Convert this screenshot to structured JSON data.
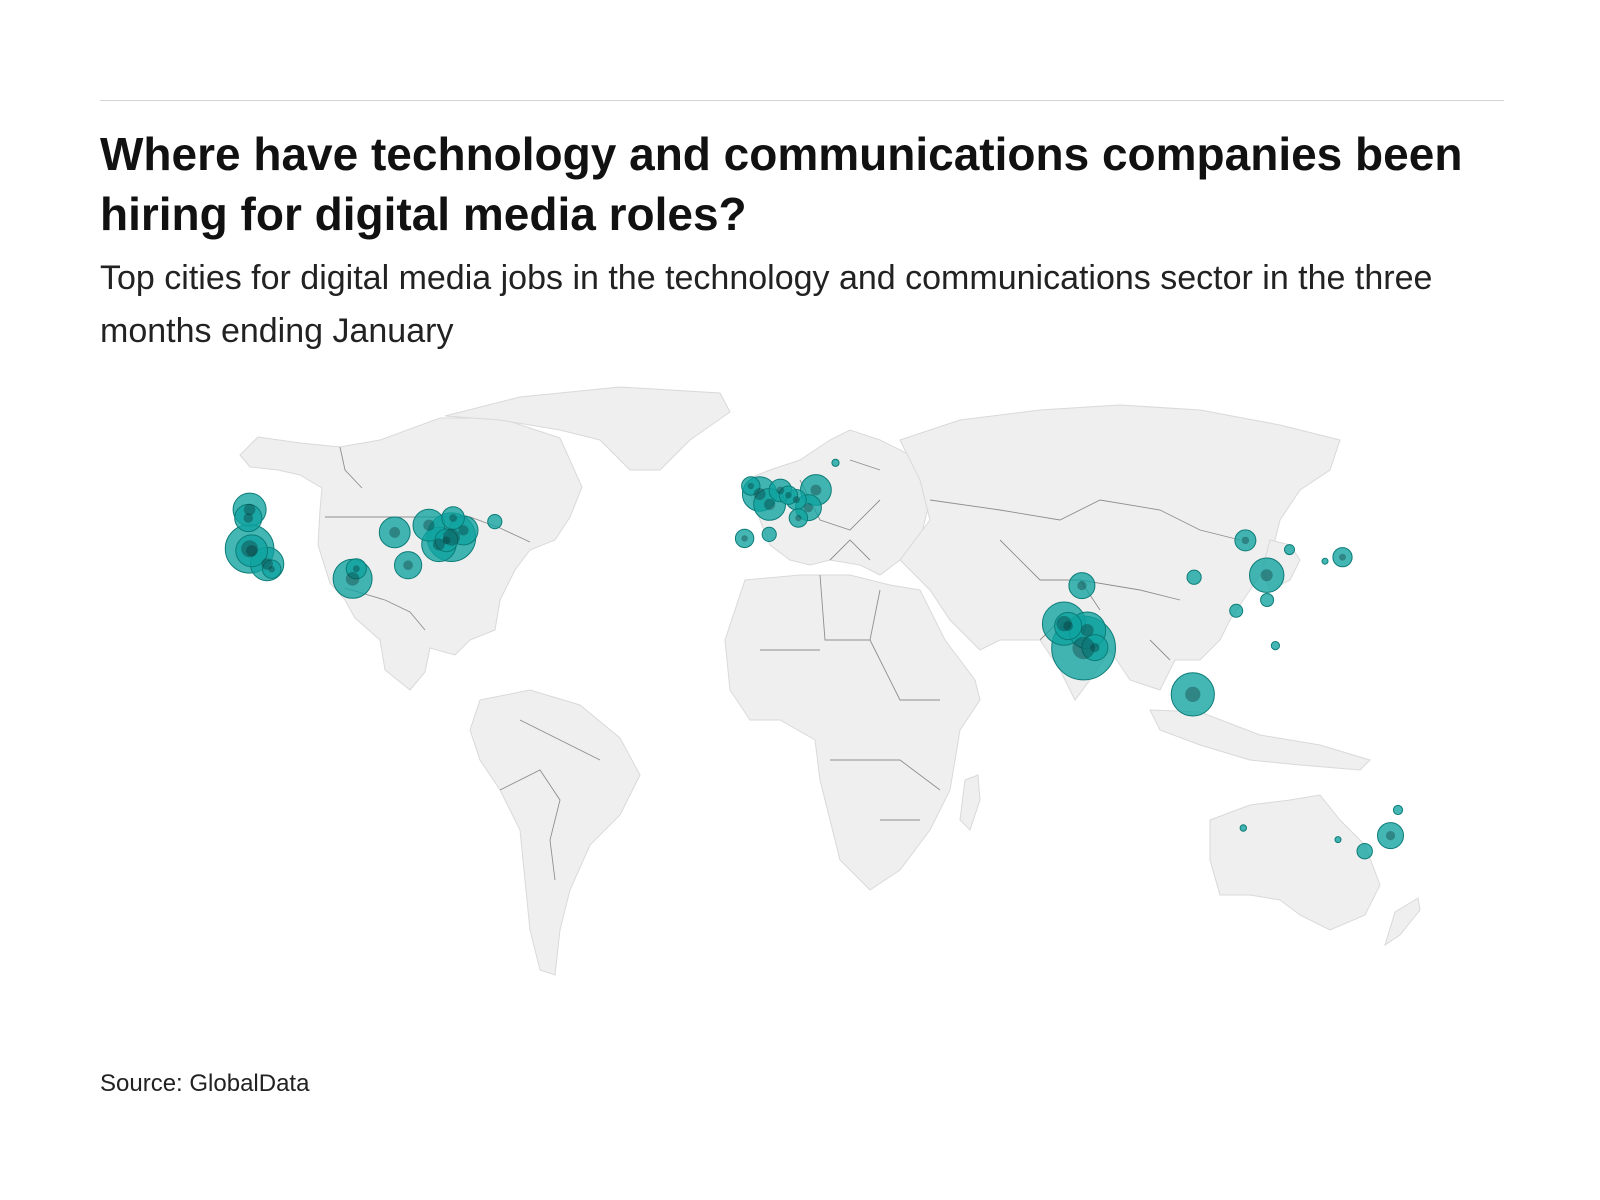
{
  "header": {
    "title": "Where have technology and communications companies been hiring for digital media roles?",
    "subtitle": "Top cities for digital media jobs in the technology and communications sector in the three months ending January"
  },
  "footer": {
    "source": "Source: GlobalData"
  },
  "map": {
    "projection": "equirectangular",
    "land_color": "#efefef",
    "bubble_color": "#0fa3a0",
    "bubble_opacity": 0.78,
    "overlap_color": "#0a2b2b"
  },
  "chart_data": {
    "type": "bubble-map",
    "title": "Where have technology and communications companies been hiring for digital media roles?",
    "unit": "relative job postings (area-scaled)",
    "points": [
      {
        "lon": -122.4,
        "lat": 47.6,
        "value": 3.2
      },
      {
        "lon": -122.7,
        "lat": 45.5,
        "value": 2.2
      },
      {
        "lon": -122.4,
        "lat": 37.8,
        "value": 7.0
      },
      {
        "lon": -121.9,
        "lat": 37.3,
        "value": 3.0
      },
      {
        "lon": -118.2,
        "lat": 34.0,
        "value": 3.3
      },
      {
        "lon": -117.1,
        "lat": 32.7,
        "value": 1.0
      },
      {
        "lon": -97.7,
        "lat": 30.3,
        "value": 4.5
      },
      {
        "lon": -96.8,
        "lat": 32.8,
        "value": 1.2
      },
      {
        "lon": -87.6,
        "lat": 41.9,
        "value": 2.8
      },
      {
        "lon": -84.4,
        "lat": 33.7,
        "value": 2.2
      },
      {
        "lon": -79.4,
        "lat": 43.7,
        "value": 3.0
      },
      {
        "lon": -77.0,
        "lat": 38.9,
        "value": 3.5
      },
      {
        "lon": -75.2,
        "lat": 39.9,
        "value": 1.5
      },
      {
        "lon": -74.0,
        "lat": 40.7,
        "value": 7.0
      },
      {
        "lon": -73.6,
        "lat": 45.5,
        "value": 1.5
      },
      {
        "lon": -71.1,
        "lat": 42.4,
        "value": 2.5
      },
      {
        "lon": -63.6,
        "lat": 44.6,
        "value": 0.6
      },
      {
        "lon": -0.1,
        "lat": 51.5,
        "value": 3.5
      },
      {
        "lon": -2.2,
        "lat": 53.5,
        "value": 1.0
      },
      {
        "lon": 2.3,
        "lat": 48.9,
        "value": 3.0
      },
      {
        "lon": 4.9,
        "lat": 52.4,
        "value": 1.5
      },
      {
        "lon": 6.8,
        "lat": 51.2,
        "value": 1.0
      },
      {
        "lon": 8.7,
        "lat": 50.1,
        "value": 1.2
      },
      {
        "lon": 11.6,
        "lat": 48.1,
        "value": 2.0
      },
      {
        "lon": 13.4,
        "lat": 52.5,
        "value": 2.8
      },
      {
        "lon": 9.2,
        "lat": 45.5,
        "value": 1.0
      },
      {
        "lon": -3.7,
        "lat": 40.4,
        "value": 1.0
      },
      {
        "lon": 2.2,
        "lat": 41.4,
        "value": 0.6
      },
      {
        "lon": 18.1,
        "lat": 59.3,
        "value": 0.15
      },
      {
        "lon": 72.9,
        "lat": 19.1,
        "value": 5.5
      },
      {
        "lon": 73.9,
        "lat": 18.5,
        "value": 2.2
      },
      {
        "lon": 77.2,
        "lat": 28.6,
        "value": 2.0
      },
      {
        "lon": 77.6,
        "lat": 13.0,
        "value": 12.0
      },
      {
        "lon": 78.5,
        "lat": 17.4,
        "value": 4.0
      },
      {
        "lon": 80.3,
        "lat": 13.1,
        "value": 2.0
      },
      {
        "lon": 103.8,
        "lat": 1.4,
        "value": 5.5
      },
      {
        "lon": 116.4,
        "lat": 39.9,
        "value": 1.3
      },
      {
        "lon": 121.5,
        "lat": 31.2,
        "value": 3.5
      },
      {
        "lon": 121.6,
        "lat": 25.0,
        "value": 0.5
      },
      {
        "lon": 114.2,
        "lat": 22.3,
        "value": 0.5
      },
      {
        "lon": 104.1,
        "lat": 30.7,
        "value": 0.6
      },
      {
        "lon": 126.98,
        "lat": 37.6,
        "value": 0.3
      },
      {
        "lon": 139.7,
        "lat": 35.7,
        "value": 1.1
      },
      {
        "lon": 135.5,
        "lat": 34.7,
        "value": 0.1
      },
      {
        "lon": 151.2,
        "lat": -33.9,
        "value": 2.0
      },
      {
        "lon": 145.0,
        "lat": -37.8,
        "value": 0.7
      },
      {
        "lon": 153.0,
        "lat": -27.5,
        "value": 0.25
      },
      {
        "lon": 115.9,
        "lat": -32.0,
        "value": 0.12
      },
      {
        "lon": 138.6,
        "lat": -34.9,
        "value": 0.1
      },
      {
        "lon": 123.6,
        "lat": 13.6,
        "value": 0.2
      }
    ]
  }
}
